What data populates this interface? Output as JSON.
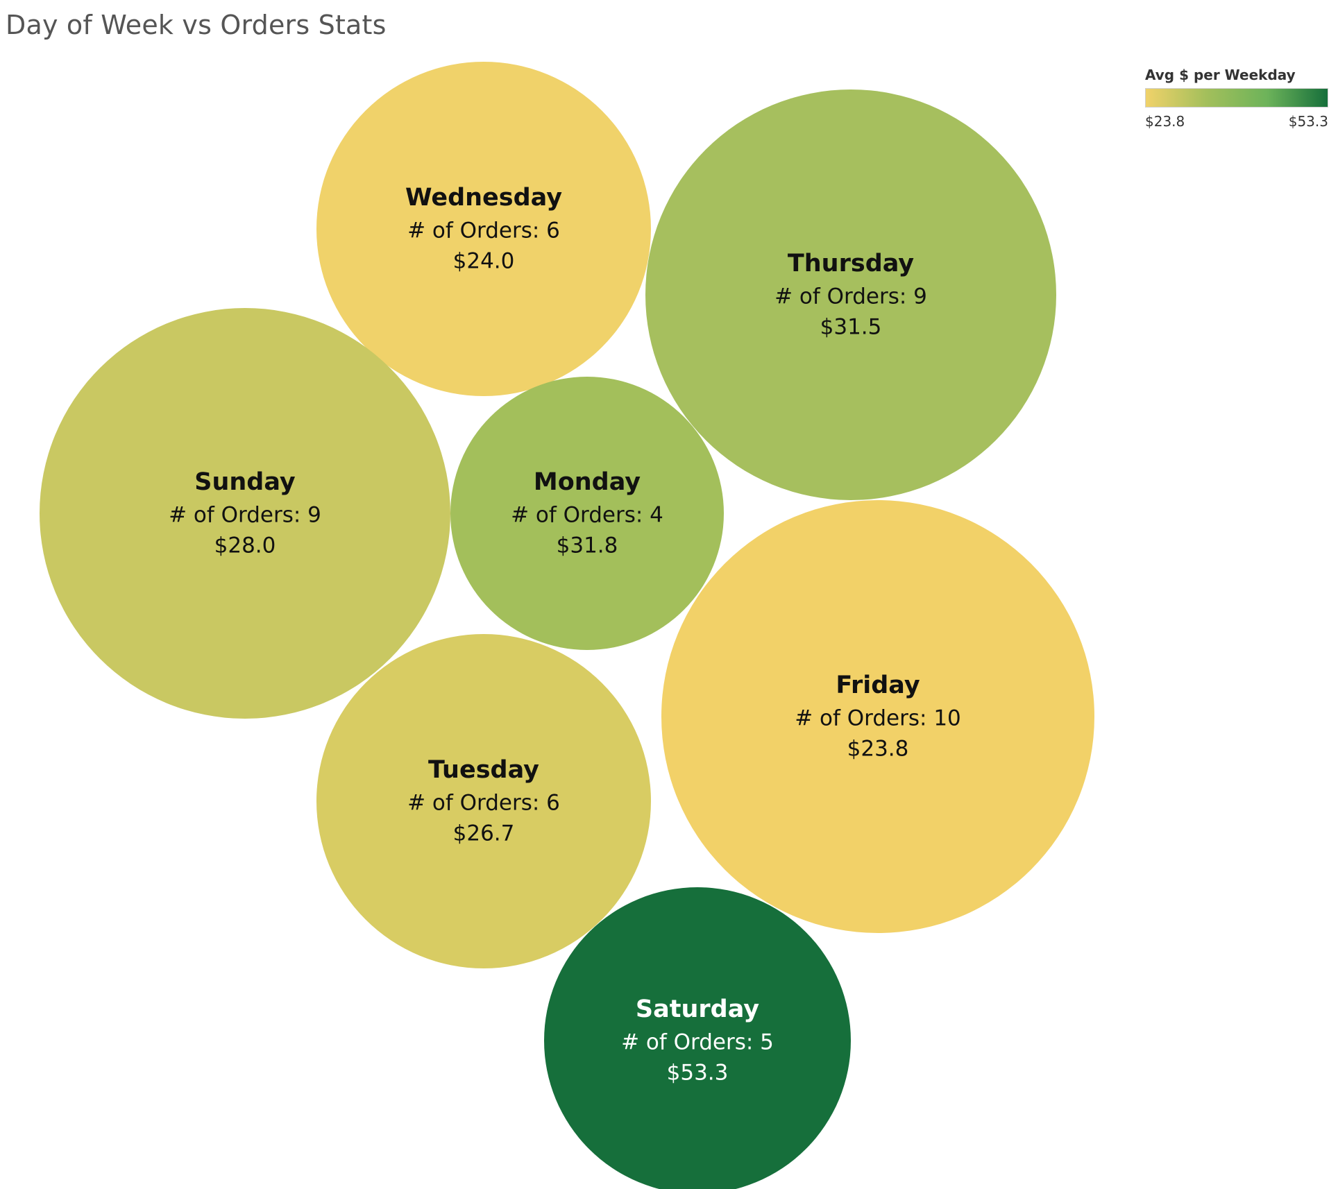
{
  "title": "Day of Week vs Orders Stats",
  "legend": {
    "title": "Avg $ per Weekday",
    "min_label": "$23.8",
    "max_label": "$53.3",
    "min_value": 23.8,
    "max_value": 53.3,
    "color_stops": [
      "#f0d26a",
      "#a3bf5b",
      "#6db35a",
      "#166f3b"
    ]
  },
  "chart_data": {
    "type": "bubble",
    "title": "Day of Week vs Orders Stats",
    "size_measure": "# of Orders",
    "color_measure": "Avg $ per Weekday",
    "orders_label": "# of Orders: ",
    "bubbles": [
      {
        "day": "Wednesday",
        "orders": 6,
        "avg": 24.0,
        "avg_label": "$24.0",
        "color": "#f0d26a",
        "text_color": "#111111"
      },
      {
        "day": "Thursday",
        "orders": 9,
        "avg": 31.5,
        "avg_label": "$31.5",
        "color": "#a6bf5e",
        "text_color": "#111111"
      },
      {
        "day": "Sunday",
        "orders": 9,
        "avg": 28.0,
        "avg_label": "$28.0",
        "color": "#c9c862",
        "text_color": "#111111"
      },
      {
        "day": "Monday",
        "orders": 4,
        "avg": 31.8,
        "avg_label": "$31.8",
        "color": "#a3bf5b",
        "text_color": "#111111"
      },
      {
        "day": "Friday",
        "orders": 10,
        "avg": 23.8,
        "avg_label": "$23.8",
        "color": "#f2d168",
        "text_color": "#111111"
      },
      {
        "day": "Tuesday",
        "orders": 6,
        "avg": 26.7,
        "avg_label": "$26.7",
        "color": "#d8cc63",
        "text_color": "#111111"
      },
      {
        "day": "Saturday",
        "orders": 5,
        "avg": 53.3,
        "avg_label": "$53.3",
        "color": "#166f3b",
        "text_color": "#ffffff"
      }
    ]
  }
}
